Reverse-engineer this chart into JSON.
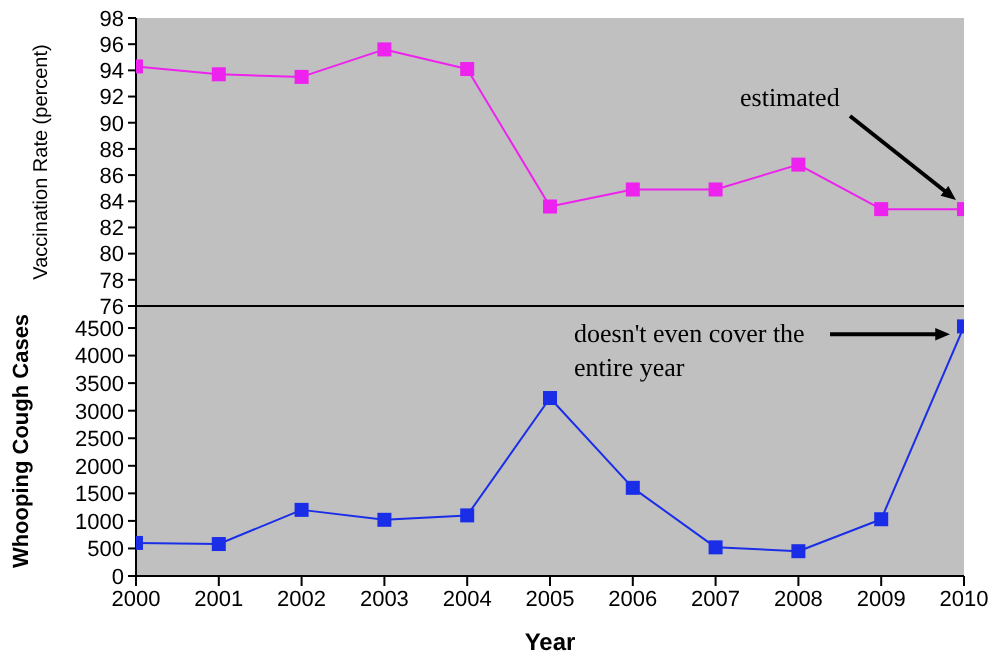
{
  "chart_data": [
    {
      "type": "line",
      "ylabel": "Vaccination Rate (percent)",
      "x": [
        2000,
        2001,
        2002,
        2003,
        2004,
        2005,
        2006,
        2007,
        2008,
        2009,
        2010
      ],
      "values": [
        94.3,
        93.7,
        93.5,
        95.6,
        94.1,
        83.6,
        84.9,
        84.9,
        86.8,
        83.4,
        83.4
      ],
      "color": "#ee22ee",
      "xlim": [
        2000,
        2010
      ],
      "xticks": [
        2000,
        2001,
        2002,
        2003,
        2004,
        2005,
        2006,
        2007,
        2008,
        2009,
        2010
      ],
      "ylim": [
        76,
        98
      ],
      "yticks": [
        76,
        78,
        80,
        82,
        84,
        86,
        88,
        90,
        92,
        94,
        96,
        98
      ],
      "tick_labels": "y",
      "grid": false,
      "legend": false,
      "marker": "square",
      "line_style": "solid",
      "annotations": [
        "estimated"
      ]
    },
    {
      "type": "line",
      "xlabel": "Year",
      "ylabel": "Whooping Cough Cases",
      "x": [
        2000,
        2001,
        2002,
        2003,
        2004,
        2005,
        2006,
        2007,
        2008,
        2009,
        2010
      ],
      "values": [
        600,
        580,
        1200,
        1020,
        1100,
        3230,
        1600,
        520,
        450,
        1030,
        4530
      ],
      "color": "#1a2ee8",
      "xlim": [
        2000,
        2010
      ],
      "xticks": [
        2000,
        2001,
        2002,
        2003,
        2004,
        2005,
        2006,
        2007,
        2008,
        2009,
        2010
      ],
      "ylim": [
        0,
        4900
      ],
      "yticks": [
        0,
        500,
        1000,
        1500,
        2000,
        2500,
        3000,
        3500,
        4000,
        4500
      ],
      "grid": false,
      "legend": false,
      "marker": "square",
      "line_style": "solid",
      "annotations": [
        "doesn't even cover the entire year"
      ]
    }
  ]
}
